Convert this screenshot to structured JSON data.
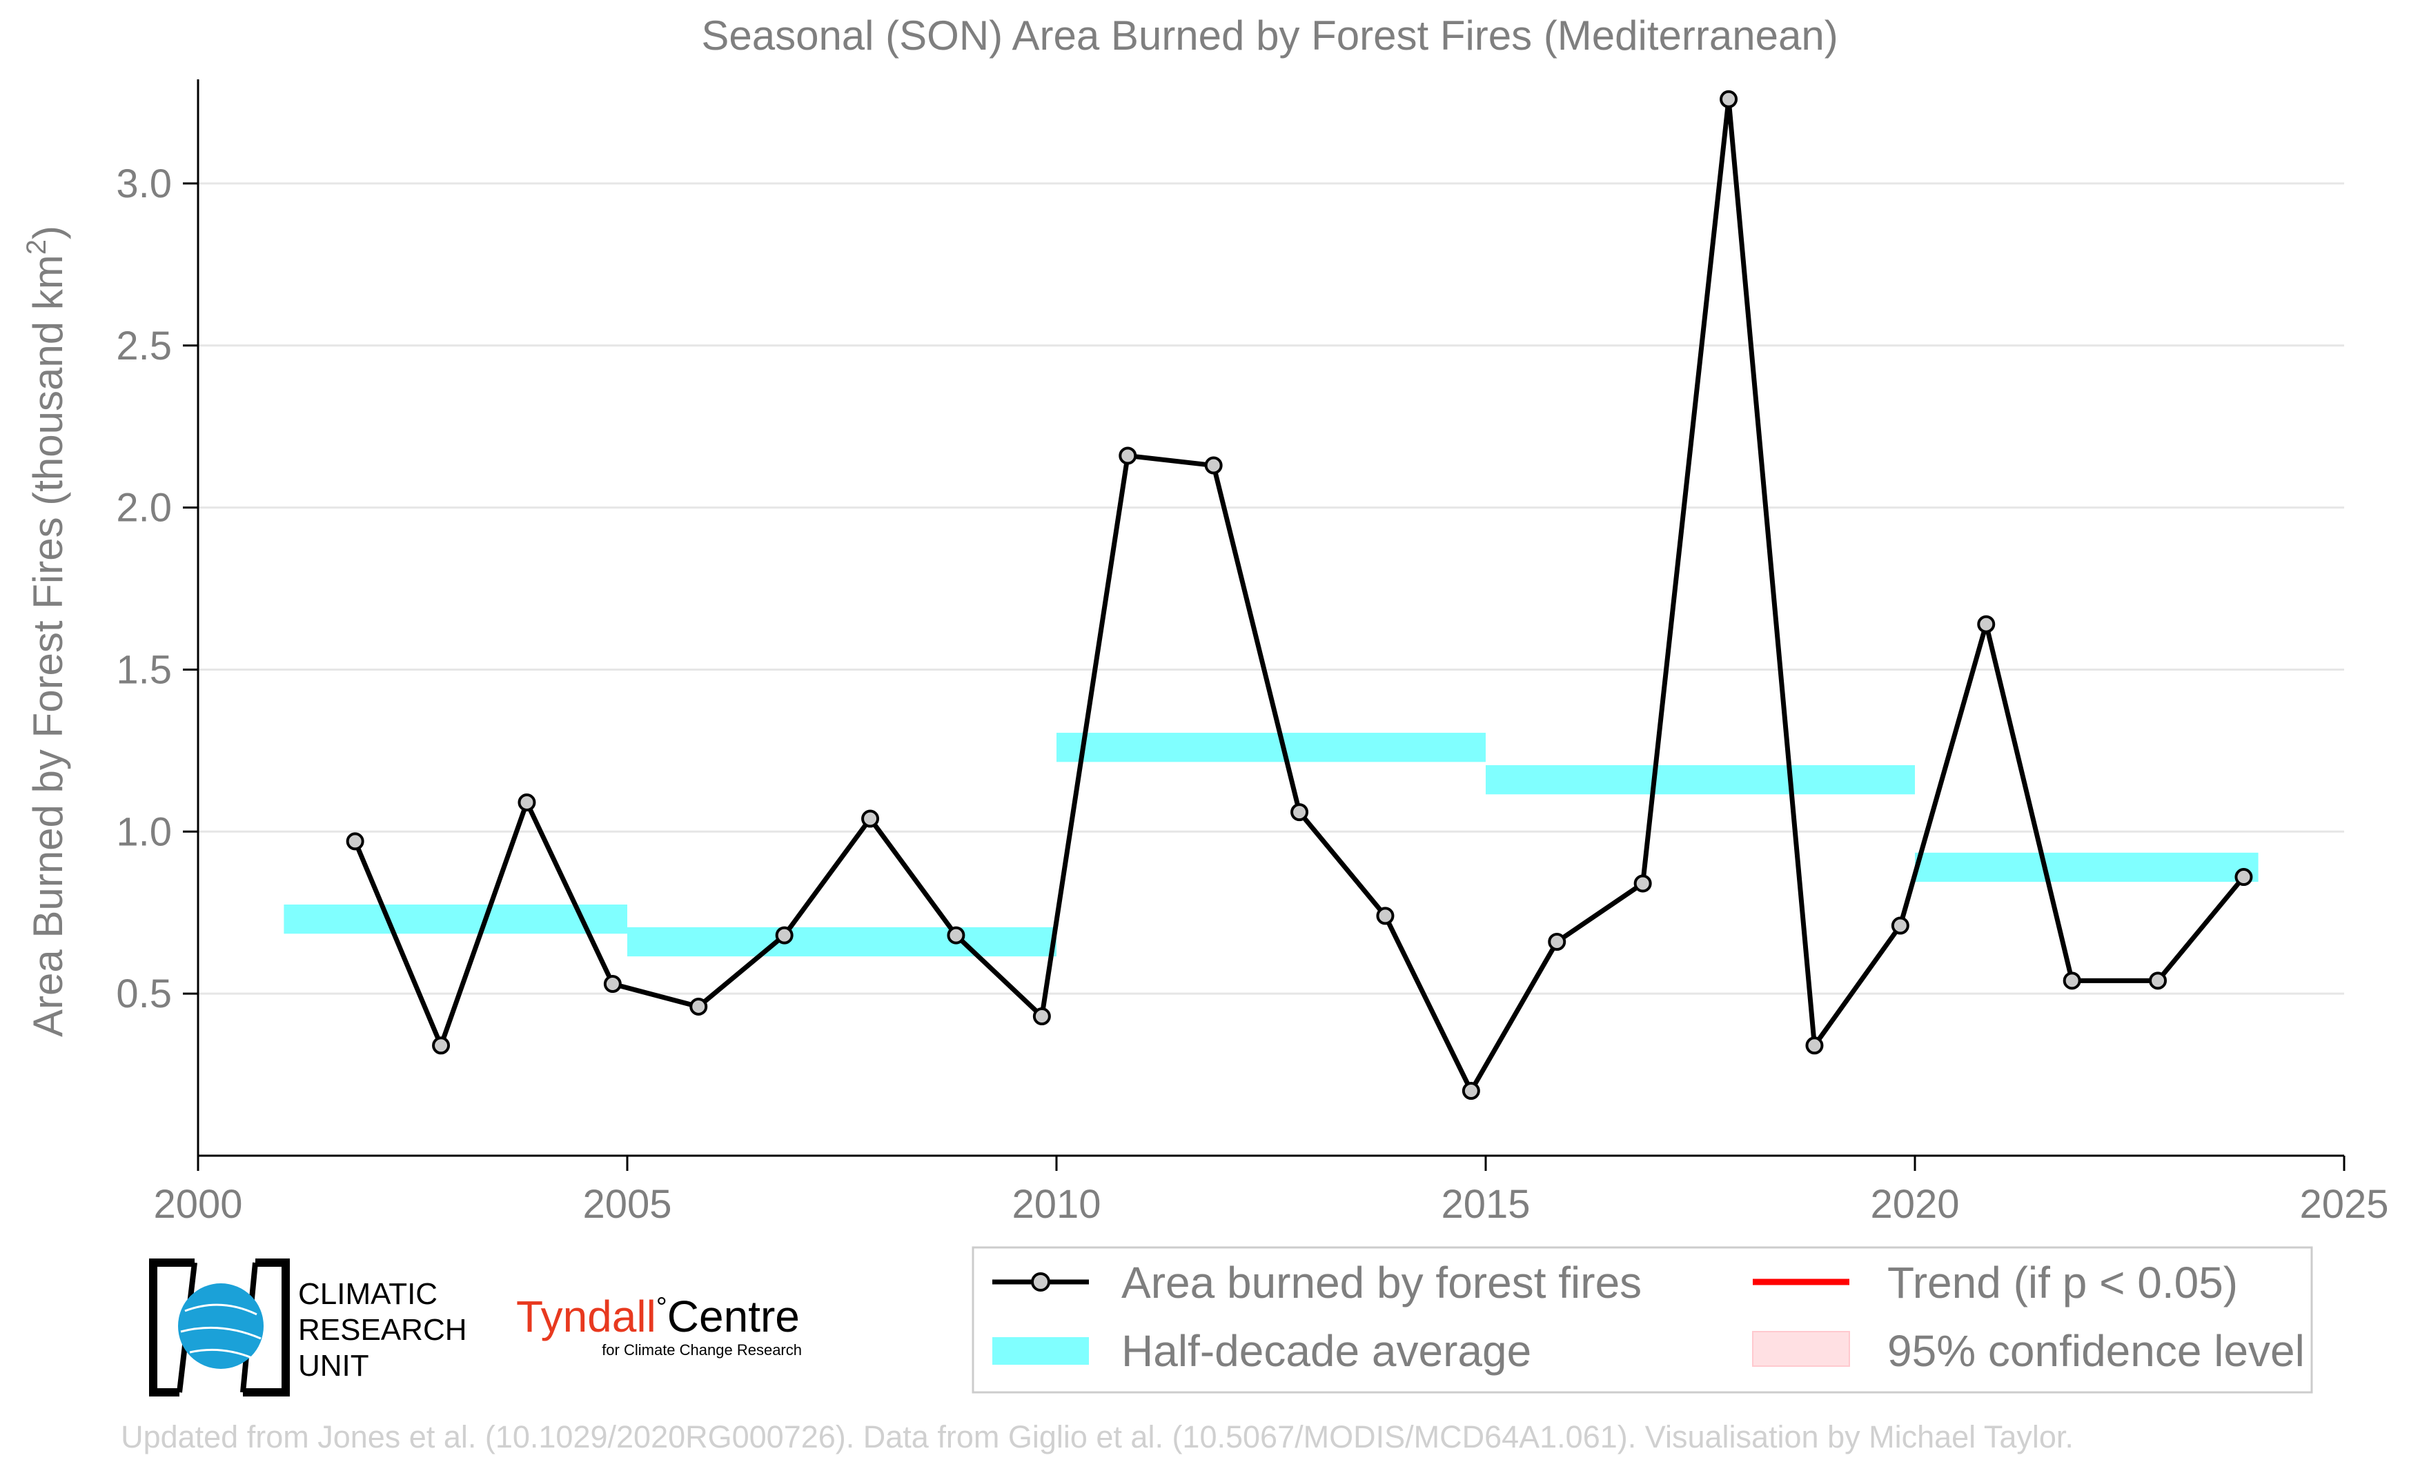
{
  "chart_data": {
    "type": "line",
    "title": "Seasonal (SON) Area Burned by Forest Fires (Mediterranean)",
    "xlabel": "",
    "ylabel": "Area Burned by Forest Fires (thousand km",
    "ylabel_superscript": "2",
    "ylabel_close": ")",
    "xlim": [
      2000,
      2025
    ],
    "ylim": [
      0,
      3.3
    ],
    "xticks": [
      2000,
      2005,
      2010,
      2015,
      2020,
      2025
    ],
    "yticks": [
      0.5,
      1.0,
      1.5,
      2.0,
      2.5,
      3.0
    ],
    "ytick_labels": [
      "0.5",
      "1.0",
      "1.5",
      "2.0",
      "2.5",
      "3.0"
    ],
    "grid": "horizontal",
    "series": [
      {
        "name": "Area burned by forest fires",
        "color": "#000000",
        "marker_color": "#cccccc",
        "x": [
          2001.83,
          2002.83,
          2003.83,
          2004.83,
          2005.83,
          2006.83,
          2007.83,
          2008.83,
          2009.83,
          2010.83,
          2011.83,
          2012.83,
          2013.83,
          2014.83,
          2015.83,
          2016.83,
          2017.83,
          2018.83,
          2019.83,
          2020.83,
          2021.83,
          2022.83,
          2023.83
        ],
        "values": [
          0.97,
          0.34,
          1.09,
          0.53,
          0.46,
          0.68,
          1.04,
          0.68,
          0.43,
          2.16,
          2.13,
          1.06,
          0.74,
          0.2,
          0.66,
          0.84,
          3.26,
          0.34,
          0.71,
          1.64,
          0.54,
          0.54,
          0.86
        ]
      }
    ],
    "half_decade_average": {
      "name": "Half-decade average",
      "color": "#80ffff",
      "segments": [
        {
          "x_start": 2001.0,
          "x_end": 2005.0,
          "value": 0.73
        },
        {
          "x_start": 2005.0,
          "x_end": 2010.0,
          "value": 0.66
        },
        {
          "x_start": 2010.0,
          "x_end": 2015.0,
          "value": 1.26
        },
        {
          "x_start": 2015.0,
          "x_end": 2020.0,
          "value": 1.16
        },
        {
          "x_start": 2020.0,
          "x_end": 2024.0,
          "value": 0.89
        }
      ]
    },
    "legend": {
      "placement": "bottom-right",
      "entries": [
        {
          "label": "Area burned by forest fires",
          "kind": "line-marker",
          "color": "#000000"
        },
        {
          "label": "Trend (if p < 0.05)",
          "kind": "line",
          "color": "#ff0000"
        },
        {
          "label": "Half-decade average",
          "kind": "band",
          "color": "#80ffff"
        },
        {
          "label": "95% confidence level",
          "kind": "band",
          "color": "#ffe0e3"
        }
      ]
    }
  },
  "logos": {
    "cru_line1": "CLIMATIC",
    "cru_line2": "RESEARCH",
    "cru_line3": "UNIT",
    "tyndall_main": "Tyndall",
    "tyndall_degree": "°",
    "tyndall_centre": "Centre",
    "tyndall_sub": "for Climate Change Research",
    "tyndall_color": "#e8391f",
    "cru_color": "#1ba1d8"
  },
  "footer": "Updated from Jones et al. (10.1029/2020RG000726). Data from Giglio et al. (10.5067/MODIS/MCD64A1.061). Visualisation by Michael Taylor."
}
